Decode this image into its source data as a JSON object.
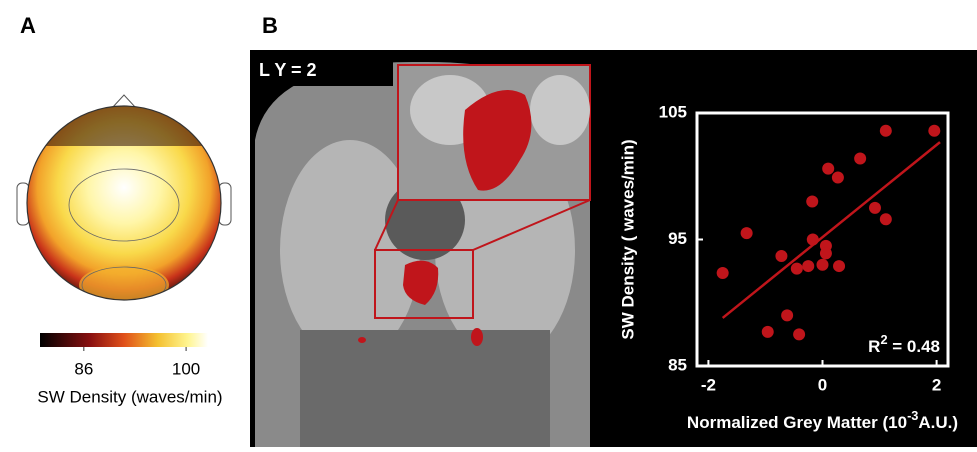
{
  "panels": [
    "A",
    "B"
  ],
  "image_label": "L Y = 2",
  "chart_data": [
    {
      "type": "colorbar",
      "label": "SW Density (waves/min)",
      "xlim": [
        80,
        103
      ],
      "xticks": [
        86,
        100
      ]
    },
    {
      "type": "scatter",
      "color": "#c0151b",
      "ylabel": "SW Density ( waves/min)",
      "xlabel": {
        "base": "Normalized Grey Matter (10",
        "sup": "-3",
        "rest": "A.U.)"
      },
      "annotation": {
        "base": "R",
        "sup": "2",
        "rest": " = 0.48"
      },
      "xlim": [
        -2.2,
        2.2
      ],
      "xticks": [
        -2,
        0,
        2
      ],
      "ylim": [
        85,
        105
      ],
      "yticks": [
        85,
        95,
        105
      ],
      "x": [
        -1.75,
        -1.33,
        -0.72,
        -0.96,
        -0.62,
        -0.45,
        -0.41,
        -0.25,
        -0.17,
        -0.18,
        0.06,
        0.06,
        0,
        0.1,
        0.27,
        0.29,
        0.66,
        0.92,
        1.11,
        1.11,
        1.96
      ],
      "y": [
        92.35,
        95.5,
        93.7,
        87.7,
        89.0,
        92.7,
        87.5,
        92.9,
        95.0,
        98.0,
        94.5,
        93.9,
        93.0,
        100.6,
        99.9,
        92.9,
        101.4,
        97.5,
        103.6,
        96.6,
        103.6
      ],
      "fit": {
        "x": [
          -1.75,
          2.06
        ],
        "y": [
          88.8,
          102.7
        ]
      }
    }
  ]
}
